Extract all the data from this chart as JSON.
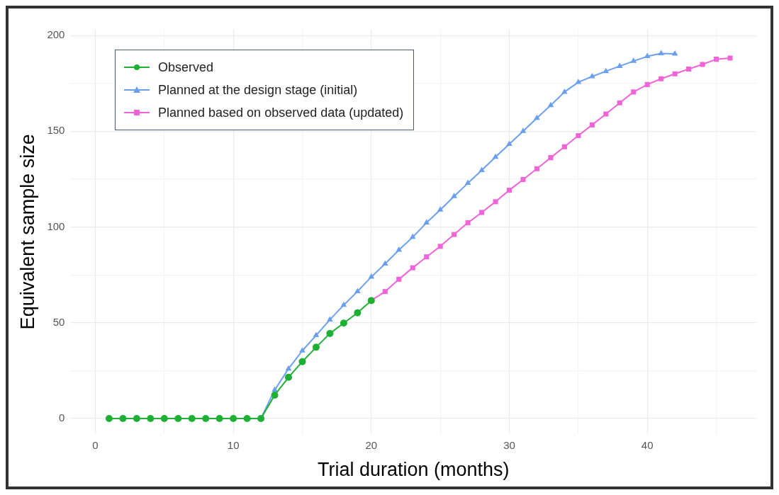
{
  "chart_data": {
    "type": "line",
    "xlabel": "Trial duration (months)",
    "ylabel": "Equivalent sample size",
    "xlim": [
      -1.8,
      47.9
    ],
    "ylim": [
      -8,
      203
    ],
    "xticks": [
      0,
      {
        "value": 5,
        "label": null
      },
      10,
      {
        "value": 15,
        "label": null
      },
      20,
      {
        "value": 25,
        "label": null
      },
      30,
      {
        "value": 35,
        "label": null
      },
      40,
      {
        "value": 45,
        "label": null
      }
    ],
    "yticks": [
      0,
      {
        "value": 25,
        "label": null
      },
      50,
      {
        "value": 75,
        "label": null
      },
      100,
      {
        "value": 125,
        "label": null
      },
      150,
      {
        "value": 175,
        "label": null
      },
      200
    ],
    "grid": true,
    "legend": "top left",
    "line_style": "solid",
    "series": [
      {
        "name": "Observed",
        "color": "#1eb035",
        "marker": "circle",
        "x": [
          1,
          2,
          3,
          4,
          5,
          6,
          7,
          8,
          9,
          10,
          11,
          12,
          13,
          14,
          15,
          16,
          17,
          18,
          19,
          20
        ],
        "values": [
          0,
          0,
          0,
          0,
          0,
          0,
          0,
          0,
          0,
          0,
          0,
          0,
          12.2,
          21.5,
          29.7,
          37.2,
          44.4,
          49.8,
          55.2,
          61.6
        ]
      },
      {
        "name": "Planned at the design stage (initial)",
        "color": "#6a9ff0",
        "marker": "triangle",
        "x": [
          12,
          13,
          14,
          15,
          16,
          17,
          18,
          19,
          20,
          21,
          22,
          23,
          24,
          25,
          26,
          27,
          28,
          29,
          30,
          31,
          32,
          33,
          34,
          35,
          36,
          37,
          38,
          39,
          40,
          41,
          42
        ],
        "values": [
          0,
          14.9,
          26,
          35.4,
          43.4,
          51.6,
          59.2,
          66.4,
          73.9,
          80.8,
          88,
          94.7,
          102.2,
          109,
          116,
          122.9,
          129.6,
          136.5,
          143.3,
          150,
          156.9,
          163.5,
          170.5,
          175.6,
          178.6,
          181.3,
          184,
          186.6,
          189.1,
          190.6,
          190.4
        ]
      },
      {
        "name": "Planned based on observed data (updated)",
        "color": "#f064d8",
        "marker": "square",
        "x": [
          20,
          21,
          22,
          23,
          24,
          25,
          26,
          27,
          28,
          29,
          30,
          31,
          32,
          33,
          34,
          35,
          36,
          37,
          38,
          39,
          40,
          41,
          42,
          43,
          44,
          45,
          46
        ],
        "values": [
          61.6,
          66.3,
          72.7,
          78.7,
          84.4,
          89.9,
          96.1,
          102.2,
          107.6,
          113.2,
          119.2,
          124.8,
          130.4,
          136.2,
          141.9,
          147.7,
          153.3,
          159,
          164.8,
          170.5,
          174.4,
          177.4,
          180,
          182.5,
          184.9,
          187.6,
          188.2
        ]
      }
    ]
  }
}
